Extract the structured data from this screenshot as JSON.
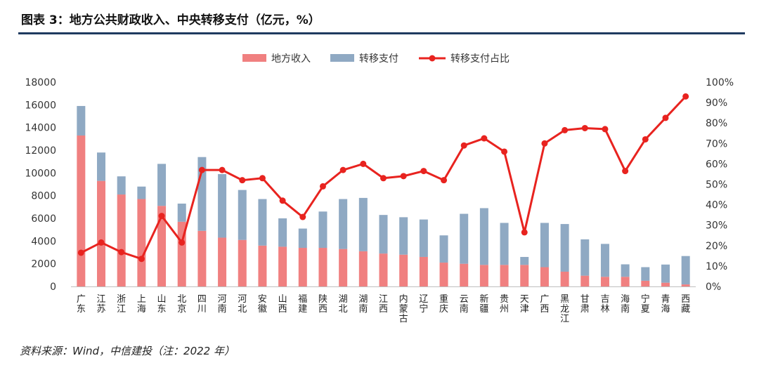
{
  "title": "图表 3：地方公共财政收入、中央转移支付（亿元，%）",
  "source": "资料来源：Wind，中信建投（注：2022 年）",
  "colors": {
    "local": "#f08080",
    "transfer": "#8fa9c3",
    "ratio": "#e8231f"
  },
  "chart_data": {
    "type": "bar",
    "stacked": true,
    "categories": [
      "广东",
      "江苏",
      "浙江",
      "上海",
      "山东",
      "北京",
      "四川",
      "河南",
      "河北",
      "安徽",
      "山西",
      "福建",
      "陕西",
      "湖北",
      "湖南",
      "江西",
      "内蒙古",
      "辽宁",
      "重庆",
      "云南",
      "新疆",
      "贵州",
      "天津",
      "广西",
      "黑龙江",
      "甘肃",
      "吉林",
      "海南",
      "宁夏",
      "青海",
      "西藏"
    ],
    "series": [
      {
        "name": "地方收入",
        "axis": "left",
        "kind": "bar",
        "values": [
          13300,
          9300,
          8100,
          7700,
          7100,
          5700,
          4900,
          4300,
          4100,
          3600,
          3500,
          3400,
          3400,
          3300,
          3100,
          2900,
          2800,
          2600,
          2100,
          2000,
          1900,
          1900,
          1900,
          1700,
          1300,
          950,
          850,
          850,
          500,
          330,
          180
        ]
      },
      {
        "name": "转移支付",
        "axis": "left",
        "kind": "bar",
        "values": [
          2600,
          2500,
          1600,
          1100,
          3700,
          1600,
          6500,
          5600,
          4400,
          4100,
          2500,
          1700,
          3200,
          4400,
          4700,
          3400,
          3300,
          3300,
          2400,
          4400,
          5000,
          3700,
          700,
          3900,
          4200,
          3200,
          2900,
          1100,
          1200,
          1600,
          2500
        ]
      },
      {
        "name": "转移支付占比",
        "axis": "right",
        "kind": "line",
        "unit": "%",
        "values": [
          16.5,
          21.5,
          16.8,
          13.5,
          34.5,
          21.5,
          57,
          57,
          52,
          53,
          42,
          34,
          49,
          57,
          60,
          53,
          54,
          56.5,
          52,
          69,
          72.5,
          66,
          26.5,
          70,
          76.5,
          77.5,
          77,
          56.5,
          72,
          82.5,
          93
        ]
      }
    ],
    "y_left": {
      "min": 0,
      "max": 18000,
      "step": 2000,
      "ticks": [
        "0",
        "2000",
        "4000",
        "6000",
        "8000",
        "10000",
        "12000",
        "14000",
        "16000",
        "18000"
      ]
    },
    "y_right": {
      "min": 0,
      "max": 100,
      "step": 10,
      "ticks": [
        "0%",
        "10%",
        "20%",
        "30%",
        "40%",
        "50%",
        "60%",
        "70%",
        "80%",
        "90%",
        "100%"
      ]
    },
    "legend": {
      "position": "top-center",
      "items": [
        "地方收入",
        "转移支付",
        "转移支付占比"
      ]
    },
    "grid": false
  }
}
